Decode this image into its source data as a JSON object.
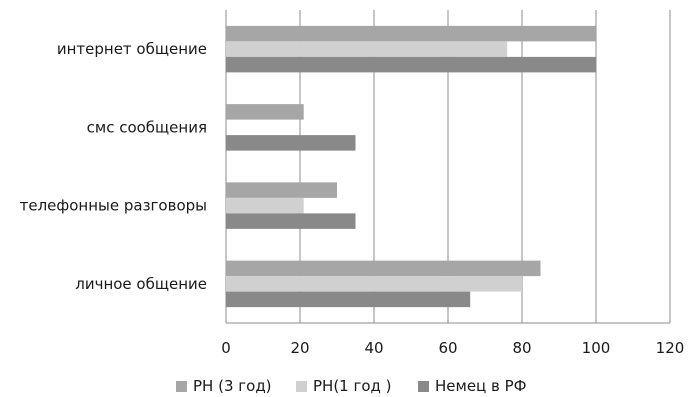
{
  "chart_data": {
    "type": "bar",
    "orientation": "horizontal",
    "categories": [
      "интернет общение",
      "смс сообщения",
      "телефонные разговоры",
      "личное общение"
    ],
    "series": [
      {
        "name": "РН (3 год)",
        "color": "#a6a6a6",
        "values": [
          100,
          21,
          30,
          85
        ]
      },
      {
        "name": "РН(1 год )",
        "color": "#d0d0d0",
        "values": [
          76,
          0,
          21,
          80
        ]
      },
      {
        "name": "Немец в РФ",
        "color": "#898989",
        "values": [
          100,
          35,
          35,
          66
        ]
      }
    ],
    "xlim": [
      0,
      120
    ],
    "xticks": [
      0,
      20,
      40,
      60,
      80,
      100,
      120
    ],
    "grid": true,
    "legend_position": "bottom"
  }
}
